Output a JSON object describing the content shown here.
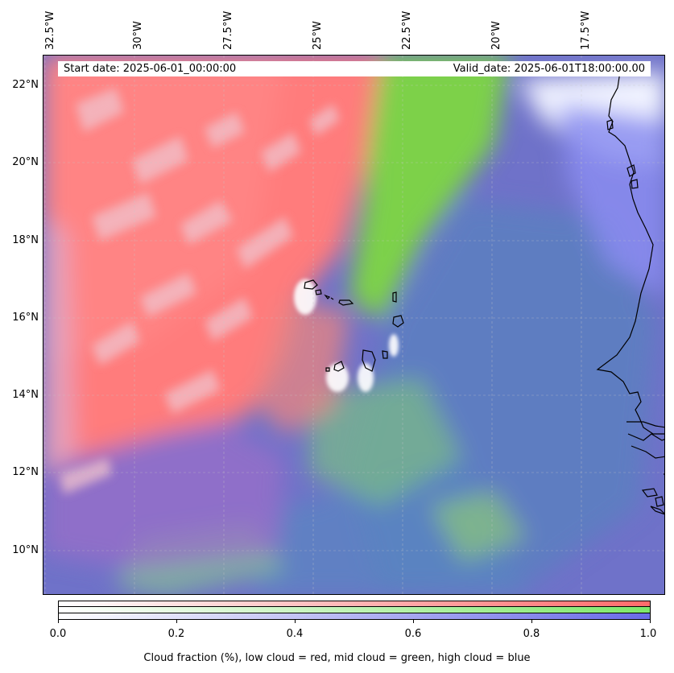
{
  "header": {
    "start_date": "Start date: 2025-06-01_00:00:00",
    "valid_date": "Valid_date: 2025-06-01T18:00:00.00"
  },
  "map": {
    "longitude_labels": [
      "32.5°W",
      "30°W",
      "27.5°W",
      "25°W",
      "22.5°W",
      "20°W",
      "17.5°W"
    ],
    "latitude_labels": [
      "22°N",
      "20°N",
      "18°N",
      "16°N",
      "14°N",
      "12°N",
      "10°N"
    ],
    "layer_colors": {
      "low_cloud": "#ff7a7a",
      "mid_cloud": "#7ad04a",
      "high_cloud": "#7a7ae8",
      "clear": "#ffffff"
    }
  },
  "colorbar": {
    "ticks": [
      "0.0",
      "0.2",
      "0.4",
      "0.6",
      "0.8",
      "1.0"
    ],
    "caption": "Cloud fraction (%), low cloud = red, mid cloud = green, high cloud = blue",
    "rows": [
      {
        "name": "low",
        "end_color": "#ff6b6b"
      },
      {
        "name": "mid",
        "end_color": "#7ee86a"
      },
      {
        "name": "high",
        "end_color": "#6a6ae8"
      }
    ]
  }
}
